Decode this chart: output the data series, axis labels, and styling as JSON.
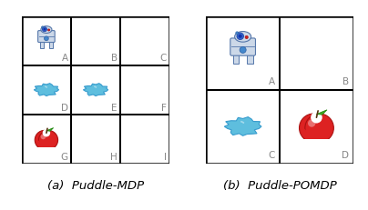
{
  "mdp_label": "(a)  Puddle-MDP",
  "pomdp_label": "(b)  Puddle-POMDP",
  "mdp_grid": {
    "rows": 3,
    "cols": 3,
    "cell_labels": [
      "A",
      "B",
      "C",
      "D",
      "E",
      "F",
      "G",
      "H",
      "I"
    ],
    "robot_cells": [
      0
    ],
    "puddle_cells": [
      3,
      4
    ],
    "apple_cells": [
      6
    ]
  },
  "pomdp_grid": {
    "rows": 2,
    "cols": 2,
    "cell_labels": [
      "A",
      "B",
      "C",
      "D"
    ],
    "robot_cells": [
      0
    ],
    "puddle_cells": [
      2
    ],
    "apple_cells": [
      3
    ]
  },
  "background_color": "#ffffff",
  "grid_color": "#000000",
  "label_color": "#888888",
  "caption_color": "#000000",
  "label_fontsize": 7.5,
  "caption_fontsize": 9.5,
  "grid_linewidth": 1.8
}
